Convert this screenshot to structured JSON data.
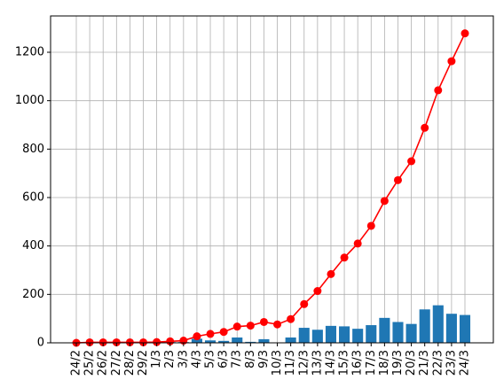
{
  "chart_data": {
    "type": "bar+line",
    "title": "",
    "xlabel": "",
    "ylabel": "",
    "categories": [
      "24/2",
      "25/2",
      "26/2",
      "27/2",
      "28/2",
      "29/2",
      "1/3",
      "2/3",
      "3/3",
      "4/3",
      "5/3",
      "6/3",
      "7/3",
      "8/3",
      "9/3",
      "10/3",
      "11/3",
      "12/3",
      "13/3",
      "14/3",
      "15/3",
      "16/3",
      "17/3",
      "18/3",
      "19/3",
      "20/3",
      "21/3",
      "22/3",
      "23/3",
      "24/3"
    ],
    "series": [
      {
        "kind": "bar",
        "color": "#1f77b4",
        "values": [
          0,
          0,
          0,
          0,
          0,
          0,
          0,
          3,
          3,
          17,
          10,
          8,
          22,
          4,
          15,
          0,
          22,
          62,
          54,
          70,
          68,
          58,
          73,
          103,
          86,
          78,
          138,
          155,
          120,
          115
        ]
      },
      {
        "kind": "line",
        "color": "#ff0000",
        "marker": "circle",
        "values": [
          0,
          2,
          2,
          2,
          2,
          2,
          3,
          6,
          9,
          27,
          37,
          45,
          67,
          71,
          86,
          76,
          98,
          160,
          214,
          284,
          352,
          410,
          483,
          586,
          672,
          750,
          888,
          1043,
          1163,
          1278
        ]
      }
    ],
    "yticks": [
      0,
      200,
      400,
      600,
      800,
      1000,
      1200
    ],
    "ylim": [
      0,
      1350
    ],
    "grid": true,
    "legend": "none"
  }
}
